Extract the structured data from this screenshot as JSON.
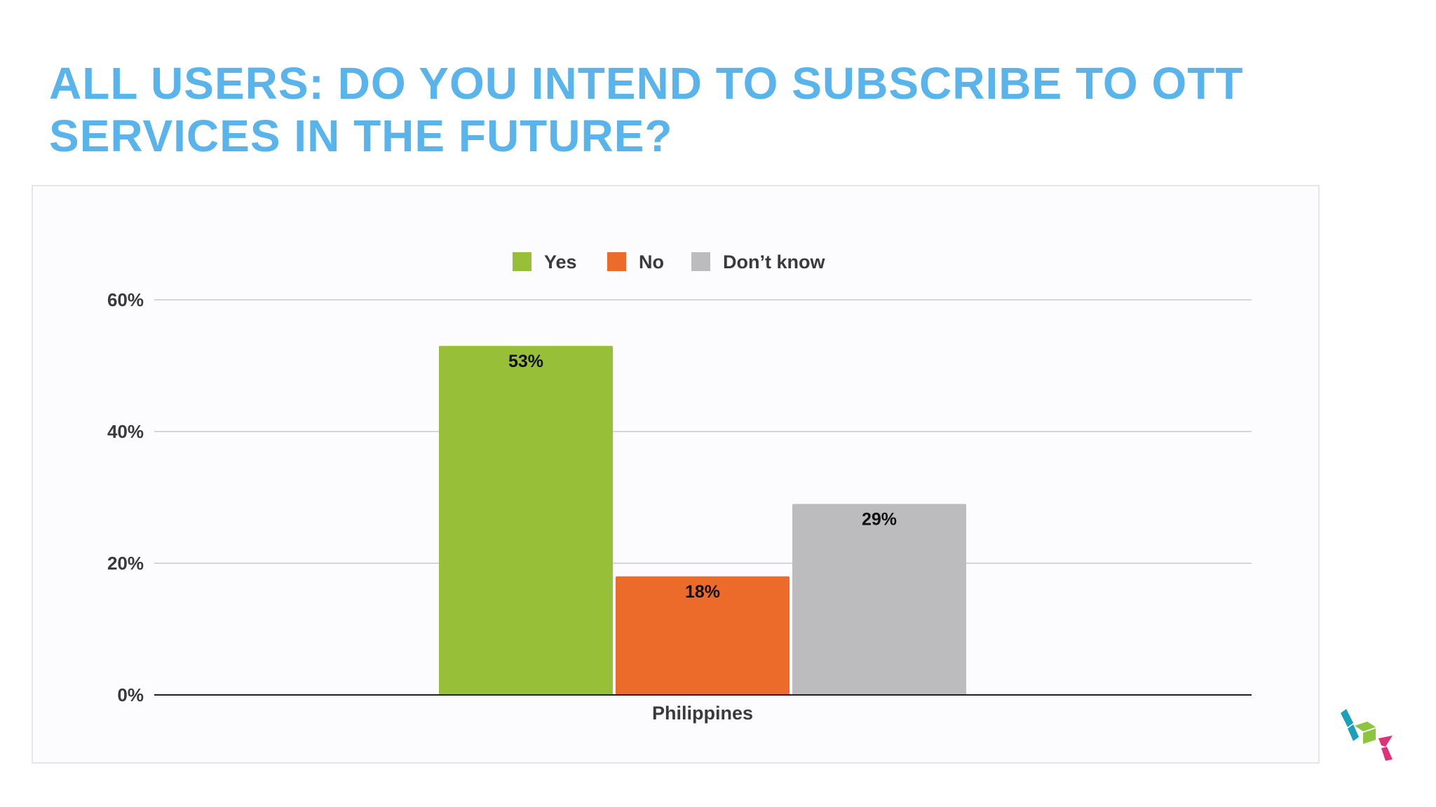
{
  "slide": {
    "title": "ALL USERS: DO YOU INTEND TO SUBSCRIBE TO OTT SERVICES IN THE FUTURE?",
    "title_color": "#5ab4ec"
  },
  "logo": {
    "icon": "cube-logo-icon",
    "colors": [
      "#1aa0b8",
      "#8cc63f",
      "#e0307a"
    ]
  },
  "chart_data": {
    "type": "bar",
    "categories": [
      "Philippines"
    ],
    "series": [
      {
        "name": "Yes",
        "values": [
          53
        ],
        "color": "#98bf38",
        "label": "53%"
      },
      {
        "name": "No",
        "values": [
          18
        ],
        "color": "#ec6a2a",
        "label": "18%"
      },
      {
        "name": "Don’t know",
        "values": [
          29
        ],
        "color": "#bcbbbe",
        "label": "29%"
      }
    ],
    "yticks": [
      "0%",
      "20%",
      "40%",
      "60%"
    ],
    "ytick_values": [
      0,
      20,
      40,
      60
    ],
    "ylim": [
      0,
      60
    ],
    "title": "",
    "xlabel": "",
    "ylabel": "",
    "grid": true,
    "legend": "top-center"
  }
}
